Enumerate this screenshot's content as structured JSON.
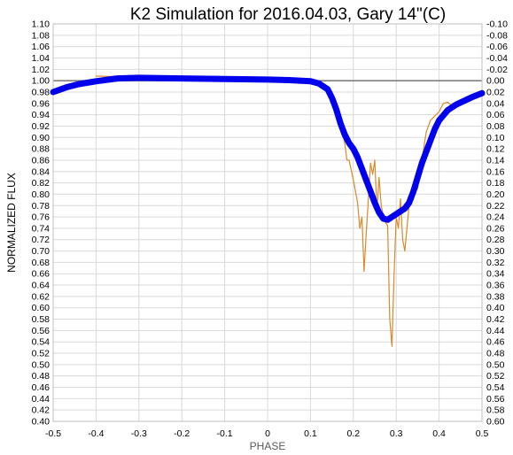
{
  "chart_data": {
    "type": "line",
    "title": "K2 Simulation for 2016.04.03, Gary 14\"(C)",
    "xlabel": "PHASE",
    "ylabel": "NORMALIZED FLUX",
    "xlim": [
      -0.5,
      0.5
    ],
    "ylim": [
      0.4,
      1.1
    ],
    "y2lim": [
      0.6,
      -0.1
    ],
    "xticks": [
      "-0.5",
      "-0.4",
      "-0.3",
      "-0.2",
      "-0.1",
      "0",
      "0.1",
      "0.2",
      "0.3",
      "0.4",
      "0.5"
    ],
    "yticks": [
      "0.40",
      "0.42",
      "0.44",
      "0.46",
      "0.48",
      "0.50",
      "0.52",
      "0.54",
      "0.56",
      "0.58",
      "0.60",
      "0.62",
      "0.64",
      "0.66",
      "0.68",
      "0.70",
      "0.72",
      "0.74",
      "0.76",
      "0.78",
      "0.80",
      "0.82",
      "0.84",
      "0.86",
      "0.88",
      "0.90",
      "0.92",
      "0.94",
      "0.96",
      "0.98",
      "1.00",
      "1.02",
      "1.04",
      "1.06",
      "1.08",
      "1.10"
    ],
    "y2ticks": [
      "0.60",
      "0.58",
      "0.56",
      "0.54",
      "0.52",
      "0.50",
      "0.48",
      "0.46",
      "0.44",
      "0.42",
      "0.40",
      "0.38",
      "0.36",
      "0.34",
      "0.32",
      "0.30",
      "0.28",
      "0.26",
      "0.24",
      "0.22",
      "0.20",
      "0.18",
      "0.16",
      "0.14",
      "0.12",
      "0.10",
      "0.08",
      "0.06",
      "0.04",
      "0.02",
      "0.00",
      "-0.02",
      "-0.04",
      "-0.06",
      "-0.08",
      "-0.10"
    ],
    "grid": true,
    "reference_line": 1.0,
    "series": [
      {
        "color": "#0000ee",
        "style": "thick",
        "x": [
          -0.5,
          -0.47,
          -0.44,
          -0.4,
          -0.35,
          -0.3,
          -0.2,
          -0.1,
          0.0,
          0.05,
          0.1,
          0.12,
          0.14,
          0.15,
          0.16,
          0.17,
          0.18,
          0.19,
          0.2,
          0.21,
          0.22,
          0.23,
          0.24,
          0.25,
          0.26,
          0.27,
          0.28,
          0.29,
          0.3,
          0.31,
          0.32,
          0.33,
          0.34,
          0.35,
          0.36,
          0.37,
          0.38,
          0.39,
          0.4,
          0.42,
          0.44,
          0.46,
          0.48,
          0.5
        ],
        "y": [
          0.98,
          0.988,
          0.994,
          0.999,
          1.004,
          1.005,
          1.004,
          1.003,
          1.002,
          1.001,
          0.999,
          0.995,
          0.985,
          0.97,
          0.95,
          0.925,
          0.905,
          0.89,
          0.88,
          0.865,
          0.845,
          0.825,
          0.805,
          0.785,
          0.768,
          0.757,
          0.755,
          0.76,
          0.765,
          0.77,
          0.775,
          0.785,
          0.805,
          0.83,
          0.855,
          0.875,
          0.895,
          0.915,
          0.93,
          0.948,
          0.958,
          0.965,
          0.972,
          0.978
        ]
      },
      {
        "color": "#d98a2b",
        "style": "thin",
        "x": [
          -0.4,
          -0.3,
          -0.2,
          -0.1,
          0.0,
          0.1,
          0.12,
          0.14,
          0.15,
          0.16,
          0.17,
          0.18,
          0.185,
          0.19,
          0.2,
          0.21,
          0.215,
          0.22,
          0.225,
          0.23,
          0.235,
          0.24,
          0.245,
          0.25,
          0.255,
          0.26,
          0.265,
          0.27,
          0.275,
          0.28,
          0.285,
          0.29,
          0.295,
          0.3,
          0.305,
          0.31,
          0.315,
          0.32,
          0.325,
          0.33,
          0.335,
          0.34,
          0.35,
          0.36,
          0.37,
          0.38,
          0.39,
          0.4,
          0.41,
          0.42,
          0.43,
          0.44,
          0.45,
          0.46,
          0.47,
          0.48,
          0.5
        ],
        "y": [
          1.008,
          1.006,
          1.005,
          1.004,
          1.002,
          1.001,
          1.0,
          0.99,
          0.978,
          0.955,
          0.925,
          0.89,
          0.86,
          0.86,
          0.825,
          0.785,
          0.74,
          0.76,
          0.664,
          0.73,
          0.79,
          0.855,
          0.835,
          0.86,
          0.77,
          0.83,
          0.78,
          0.762,
          0.75,
          0.745,
          0.58,
          0.532,
          0.66,
          0.76,
          0.74,
          0.792,
          0.72,
          0.7,
          0.74,
          0.78,
          0.79,
          0.8,
          0.81,
          0.86,
          0.91,
          0.93,
          0.938,
          0.945,
          0.96,
          0.962,
          0.956,
          0.96,
          0.965,
          0.968,
          0.972,
          0.974,
          0.976
        ]
      }
    ]
  }
}
